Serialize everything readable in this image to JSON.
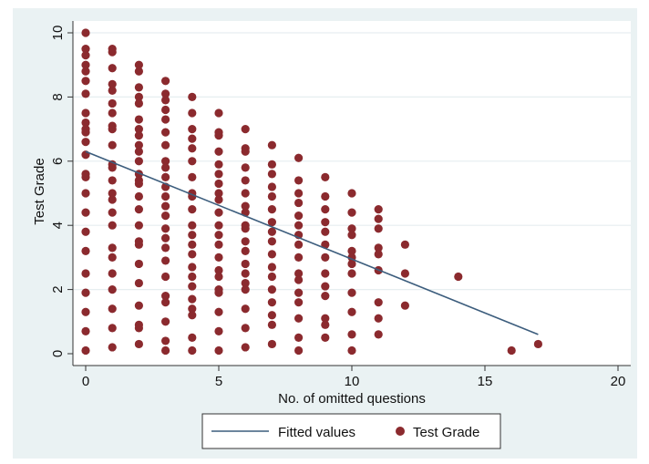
{
  "chart_data": {
    "type": "scatter",
    "xlabel": "No. of omitted questions",
    "ylabel": "Test Grade",
    "xlim": [
      0,
      20
    ],
    "ylim": [
      0,
      10
    ],
    "x_ticks": [
      0,
      5,
      10,
      15,
      20
    ],
    "y_ticks": [
      0,
      2,
      4,
      6,
      8,
      10
    ],
    "grid": true,
    "legend_position": "bottom",
    "colors": {
      "marker": "#8b2a2e",
      "fit_line": "#3c5d7d",
      "figure_background": "#eaf2f3",
      "plot_background": "#ffffff",
      "grid": "#e6eef0"
    },
    "series": [
      {
        "name": "Test Grade",
        "kind": "scatter",
        "points": [
          [
            0,
            10
          ],
          [
            0,
            9.5
          ],
          [
            0,
            9.3
          ],
          [
            0,
            9.0
          ],
          [
            0,
            8.8
          ],
          [
            0,
            8.5
          ],
          [
            0,
            8.1
          ],
          [
            0,
            7.5
          ],
          [
            0,
            7.2
          ],
          [
            0,
            7.0
          ],
          [
            0,
            6.9
          ],
          [
            0,
            6.6
          ],
          [
            0,
            6.2
          ],
          [
            0,
            5.6
          ],
          [
            0,
            5.5
          ],
          [
            0,
            5.0
          ],
          [
            0,
            4.4
          ],
          [
            0,
            3.8
          ],
          [
            0,
            3.2
          ],
          [
            0,
            2.5
          ],
          [
            0,
            1.9
          ],
          [
            0,
            1.3
          ],
          [
            0,
            0.7
          ],
          [
            0,
            0.1
          ],
          [
            1,
            9.5
          ],
          [
            1,
            9.4
          ],
          [
            1,
            8.9
          ],
          [
            1,
            8.4
          ],
          [
            1,
            8.2
          ],
          [
            1,
            7.8
          ],
          [
            1,
            7.5
          ],
          [
            1,
            7.1
          ],
          [
            1,
            7.0
          ],
          [
            1,
            6.5
          ],
          [
            1,
            5.9
          ],
          [
            1,
            5.8
          ],
          [
            1,
            5.4
          ],
          [
            1,
            5.0
          ],
          [
            1,
            4.8
          ],
          [
            1,
            4.4
          ],
          [
            1,
            4.0
          ],
          [
            1,
            3.3
          ],
          [
            1,
            3.0
          ],
          [
            1,
            2.5
          ],
          [
            1,
            2.0
          ],
          [
            1,
            1.4
          ],
          [
            1,
            0.8
          ],
          [
            1,
            0.2
          ],
          [
            2,
            9.0
          ],
          [
            2,
            8.8
          ],
          [
            2,
            8.3
          ],
          [
            2,
            8.0
          ],
          [
            2,
            7.8
          ],
          [
            2,
            7.3
          ],
          [
            2,
            7.0
          ],
          [
            2,
            6.8
          ],
          [
            2,
            6.5
          ],
          [
            2,
            6.3
          ],
          [
            2,
            6.0
          ],
          [
            2,
            5.6
          ],
          [
            2,
            5.4
          ],
          [
            2,
            5.3
          ],
          [
            2,
            4.9
          ],
          [
            2,
            4.5
          ],
          [
            2,
            4.0
          ],
          [
            2,
            3.5
          ],
          [
            2,
            3.4
          ],
          [
            2,
            2.8
          ],
          [
            2,
            2.2
          ],
          [
            2,
            1.5
          ],
          [
            2,
            0.9
          ],
          [
            2,
            0.8
          ],
          [
            2,
            0.3
          ],
          [
            3,
            8.5
          ],
          [
            3,
            8.1
          ],
          [
            3,
            7.9
          ],
          [
            3,
            7.6
          ],
          [
            3,
            7.3
          ],
          [
            3,
            6.9
          ],
          [
            3,
            6.5
          ],
          [
            3,
            6.0
          ],
          [
            3,
            5.8
          ],
          [
            3,
            5.5
          ],
          [
            3,
            5.2
          ],
          [
            3,
            4.9
          ],
          [
            3,
            4.6
          ],
          [
            3,
            4.3
          ],
          [
            3,
            3.9
          ],
          [
            3,
            3.6
          ],
          [
            3,
            3.3
          ],
          [
            3,
            2.9
          ],
          [
            3,
            2.4
          ],
          [
            3,
            1.8
          ],
          [
            3,
            1.6
          ],
          [
            3,
            1.0
          ],
          [
            3,
            0.4
          ],
          [
            3,
            0.1
          ],
          [
            4,
            8.0
          ],
          [
            4,
            7.5
          ],
          [
            4,
            7.0
          ],
          [
            4,
            6.7
          ],
          [
            4,
            6.4
          ],
          [
            4,
            6.0
          ],
          [
            4,
            5.5
          ],
          [
            4,
            5.0
          ],
          [
            4,
            4.9
          ],
          [
            4,
            4.5
          ],
          [
            4,
            4.0
          ],
          [
            4,
            3.7
          ],
          [
            4,
            3.4
          ],
          [
            4,
            3.1
          ],
          [
            4,
            2.7
          ],
          [
            4,
            2.4
          ],
          [
            4,
            2.1
          ],
          [
            4,
            1.7
          ],
          [
            4,
            1.4
          ],
          [
            4,
            1.2
          ],
          [
            4,
            0.5
          ],
          [
            4,
            0.1
          ],
          [
            5,
            7.5
          ],
          [
            5,
            6.9
          ],
          [
            5,
            6.8
          ],
          [
            5,
            6.3
          ],
          [
            5,
            5.9
          ],
          [
            5,
            5.6
          ],
          [
            5,
            5.3
          ],
          [
            5,
            5.0
          ],
          [
            5,
            4.8
          ],
          [
            5,
            4.4
          ],
          [
            5,
            4.0
          ],
          [
            5,
            3.7
          ],
          [
            5,
            3.4
          ],
          [
            5,
            3.0
          ],
          [
            5,
            2.6
          ],
          [
            5,
            2.4
          ],
          [
            5,
            2.0
          ],
          [
            5,
            1.9
          ],
          [
            5,
            1.3
          ],
          [
            5,
            0.7
          ],
          [
            5,
            0.1
          ],
          [
            6,
            7.0
          ],
          [
            6,
            6.4
          ],
          [
            6,
            6.3
          ],
          [
            6,
            5.8
          ],
          [
            6,
            5.4
          ],
          [
            6,
            5.0
          ],
          [
            6,
            4.6
          ],
          [
            6,
            4.4
          ],
          [
            6,
            4.0
          ],
          [
            6,
            3.9
          ],
          [
            6,
            3.5
          ],
          [
            6,
            3.2
          ],
          [
            6,
            2.8
          ],
          [
            6,
            2.5
          ],
          [
            6,
            2.2
          ],
          [
            6,
            2.0
          ],
          [
            6,
            1.4
          ],
          [
            6,
            0.8
          ],
          [
            6,
            0.2
          ],
          [
            7,
            6.5
          ],
          [
            7,
            5.9
          ],
          [
            7,
            5.6
          ],
          [
            7,
            5.2
          ],
          [
            7,
            4.9
          ],
          [
            7,
            4.5
          ],
          [
            7,
            4.1
          ],
          [
            7,
            3.8
          ],
          [
            7,
            3.5
          ],
          [
            7,
            3.1
          ],
          [
            7,
            2.7
          ],
          [
            7,
            2.4
          ],
          [
            7,
            2.0
          ],
          [
            7,
            1.6
          ],
          [
            7,
            1.2
          ],
          [
            7,
            0.9
          ],
          [
            7,
            0.3
          ],
          [
            8,
            6.1
          ],
          [
            8,
            5.4
          ],
          [
            8,
            5.0
          ],
          [
            8,
            4.7
          ],
          [
            8,
            4.3
          ],
          [
            8,
            4.0
          ],
          [
            8,
            3.7
          ],
          [
            8,
            3.4
          ],
          [
            8,
            3.0
          ],
          [
            8,
            2.5
          ],
          [
            8,
            2.3
          ],
          [
            8,
            1.9
          ],
          [
            8,
            1.6
          ],
          [
            8,
            1.1
          ],
          [
            8,
            0.5
          ],
          [
            8,
            0.1
          ],
          [
            9,
            5.5
          ],
          [
            9,
            4.9
          ],
          [
            9,
            4.5
          ],
          [
            9,
            4.1
          ],
          [
            9,
            3.8
          ],
          [
            9,
            3.4
          ],
          [
            9,
            3.0
          ],
          [
            9,
            2.5
          ],
          [
            9,
            2.1
          ],
          [
            9,
            1.8
          ],
          [
            9,
            1.1
          ],
          [
            9,
            0.9
          ],
          [
            9,
            0.5
          ],
          [
            10,
            5.0
          ],
          [
            10,
            4.4
          ],
          [
            10,
            3.9
          ],
          [
            10,
            3.7
          ],
          [
            10,
            3.2
          ],
          [
            10,
            3.0
          ],
          [
            10,
            2.8
          ],
          [
            10,
            2.5
          ],
          [
            10,
            1.9
          ],
          [
            10,
            1.3
          ],
          [
            10,
            0.6
          ],
          [
            10,
            0.1
          ],
          [
            11,
            4.5
          ],
          [
            11,
            4.2
          ],
          [
            11,
            3.9
          ],
          [
            11,
            3.3
          ],
          [
            11,
            3.1
          ],
          [
            11,
            2.6
          ],
          [
            11,
            1.6
          ],
          [
            11,
            1.1
          ],
          [
            11,
            0.6
          ],
          [
            12,
            3.4
          ],
          [
            12,
            2.5
          ],
          [
            12,
            1.5
          ],
          [
            14,
            2.4
          ],
          [
            16,
            0.1
          ],
          [
            17,
            0.3
          ]
        ]
      },
      {
        "name": "Fitted values",
        "kind": "line",
        "points": [
          [
            0,
            6.3
          ],
          [
            17,
            0.6
          ]
        ]
      }
    ]
  },
  "legend": {
    "items": [
      {
        "label": "Fitted values",
        "symbol": "line"
      },
      {
        "label": "Test Grade",
        "symbol": "dot"
      }
    ]
  }
}
